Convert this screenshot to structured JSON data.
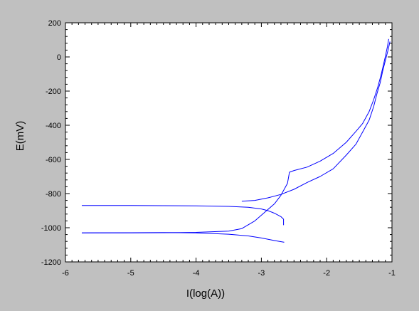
{
  "chart_data": {
    "type": "line",
    "title": "",
    "xlabel": "I(log(A))",
    "ylabel": "E(mV)",
    "xlim": [
      -6,
      -1
    ],
    "ylim": [
      -1200,
      200
    ],
    "xticks": [
      -6,
      -5,
      -4,
      -3,
      -2,
      -1
    ],
    "yticks": [
      200,
      0,
      -200,
      -400,
      -600,
      -800,
      -1000,
      -1200
    ],
    "xtick_labels": [
      "-6",
      "-5",
      "-4",
      "-3",
      "-2",
      "-1"
    ],
    "ytick_labels": [
      "200",
      "0",
      "-200",
      "-400",
      "-600",
      "-800",
      "-1000",
      "-1200"
    ],
    "grid": false,
    "legend": "none",
    "plot_background": "#ffffff",
    "figure_background": "#c0c0c0",
    "series_color": "#0000ff",
    "series": [
      {
        "x": [
          -5.75,
          -5.0,
          -4.5,
          -4.0,
          -3.5,
          -3.2,
          -3.0,
          -2.9,
          -2.8,
          -2.7,
          -2.66,
          -2.66
        ],
        "y": [
          -870,
          -870,
          -871,
          -872,
          -875,
          -880,
          -890,
          -900,
          -915,
          -935,
          -950,
          -985
        ]
      },
      {
        "x": [
          -5.75,
          -5.0,
          -4.5,
          -4.0,
          -3.5,
          -3.3,
          -3.1,
          -2.95,
          -2.8,
          -2.7,
          -2.6,
          -2.57,
          -2.5,
          -2.3,
          -2.1,
          -1.9,
          -1.7,
          -1.55,
          -1.45,
          -1.35,
          -1.28,
          -1.22,
          -1.17,
          -1.13,
          -1.1,
          -1.07,
          -1.05
        ],
        "y": [
          -1030,
          -1030,
          -1029,
          -1027,
          -1020,
          -1005,
          -960,
          -910,
          -860,
          -810,
          -740,
          -675,
          -665,
          -645,
          -610,
          -565,
          -500,
          -435,
          -390,
          -320,
          -250,
          -180,
          -110,
          -45,
          5,
          60,
          105
        ]
      },
      {
        "x": [
          -3.3,
          -3.1,
          -2.9,
          -2.7,
          -2.5,
          -2.3,
          -2.1,
          -1.9,
          -1.7,
          -1.55,
          -1.45,
          -1.35,
          -1.28,
          -1.23,
          -1.18,
          -1.14,
          -1.1,
          -1.06,
          -1.03
        ],
        "y": [
          -845,
          -840,
          -825,
          -805,
          -775,
          -735,
          -700,
          -655,
          -575,
          -510,
          -440,
          -370,
          -290,
          -215,
          -150,
          -80,
          -20,
          40,
          90
        ]
      },
      {
        "x": [
          -5.75,
          -5.0,
          -4.5,
          -4.0,
          -3.5,
          -3.2,
          -3.0,
          -2.8,
          -2.65
        ],
        "y": [
          -1030,
          -1029,
          -1028,
          -1030,
          -1038,
          -1048,
          -1060,
          -1075,
          -1085
        ]
      }
    ]
  }
}
